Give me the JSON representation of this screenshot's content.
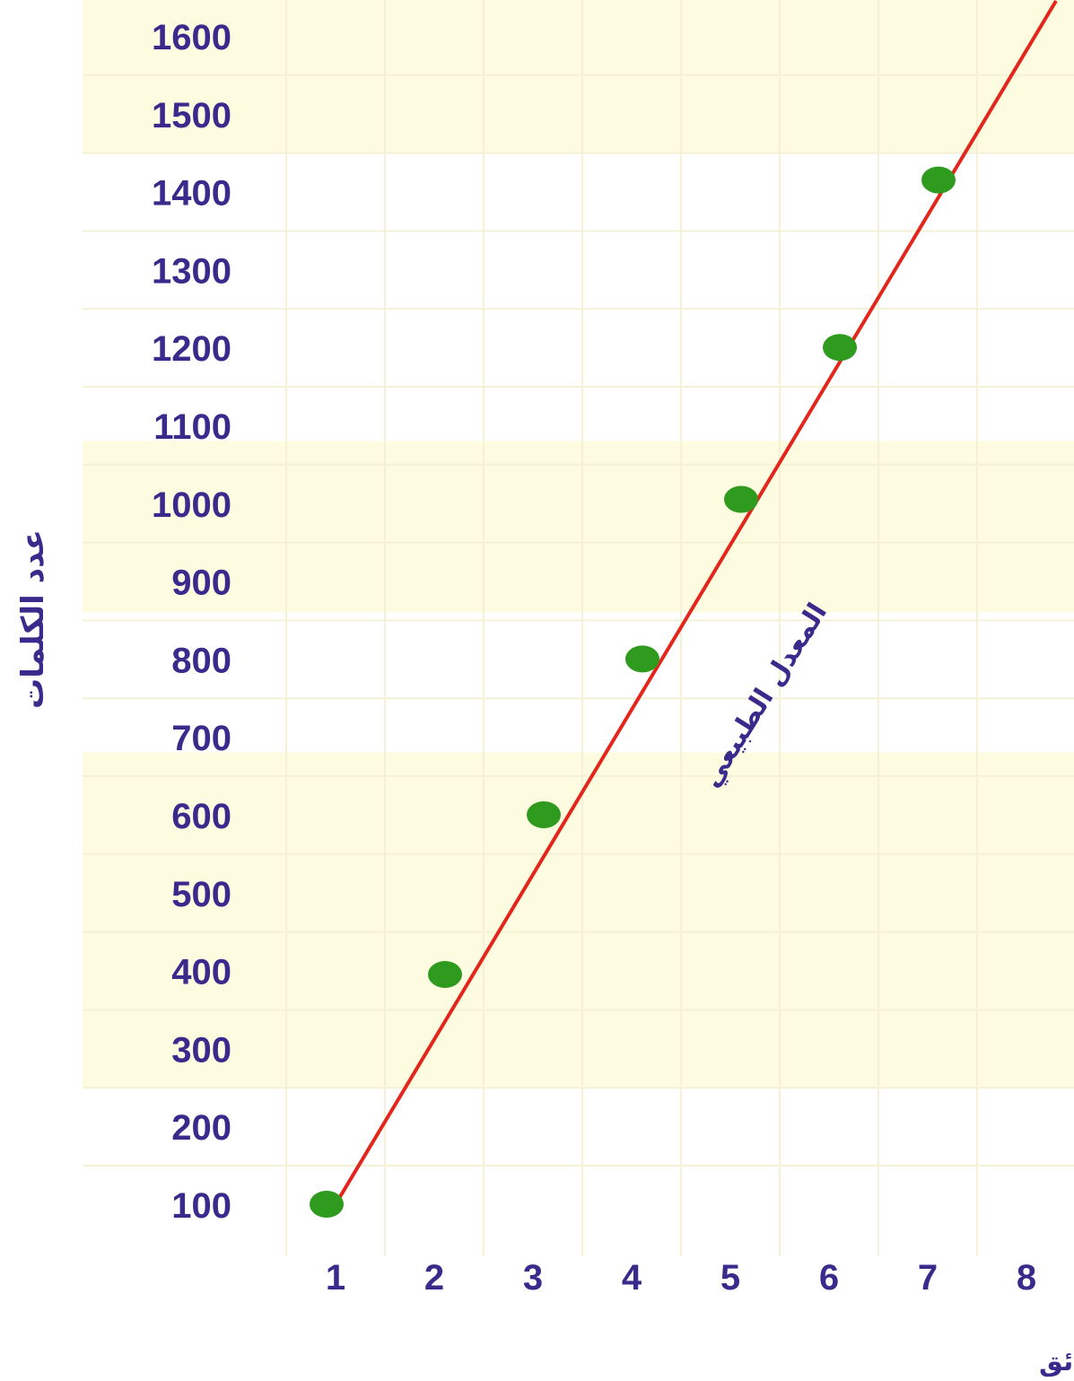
{
  "chart_data": {
    "type": "scatter",
    "title": "",
    "xlabel": "مدة القراءة بالدقائق",
    "ylabel": "عدد الكلمات",
    "x_ticks": [
      1,
      2,
      3,
      4,
      5,
      6,
      7,
      8
    ],
    "y_ticks": [
      100,
      200,
      300,
      400,
      500,
      600,
      700,
      800,
      900,
      1000,
      1100,
      1200,
      1300,
      1400,
      1500,
      1600
    ],
    "xlim": [
      0.2,
      8.3
    ],
    "ylim": [
      50,
      1650
    ],
    "points": [
      {
        "x": 1,
        "y": 100
      },
      {
        "x": 2.2,
        "y": 395
      },
      {
        "x": 3.2,
        "y": 600
      },
      {
        "x": 4.2,
        "y": 800
      },
      {
        "x": 5.2,
        "y": 1005
      },
      {
        "x": 6.2,
        "y": 1200
      },
      {
        "x": 7.2,
        "y": 1415
      }
    ],
    "trend_line": {
      "x": [
        1,
        8.3
      ],
      "y": [
        100,
        1645
      ]
    },
    "line_annotation": "المعدل الطبيعي",
    "grid": true,
    "colors": {
      "points": "#2e9a1e",
      "line": "#e3261c",
      "ticks": "#3a2a8c",
      "band": "#fdfbe0",
      "grid": "#f4f1d6"
    }
  }
}
